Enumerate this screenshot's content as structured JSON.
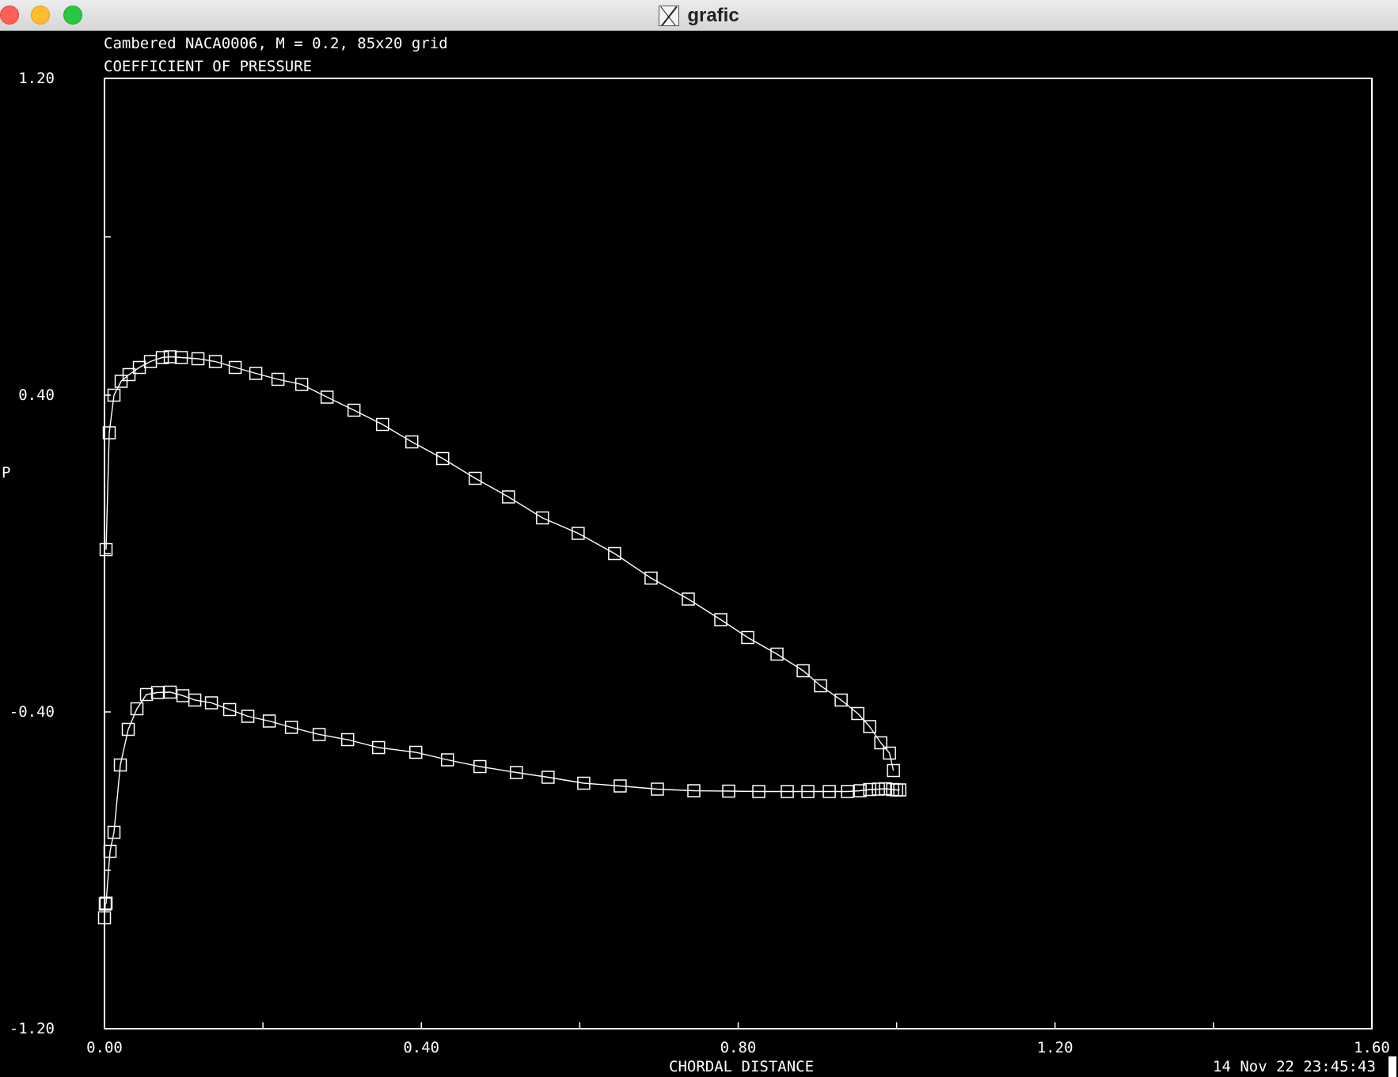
{
  "window": {
    "title": "grafic",
    "buttons": [
      "close",
      "minimize",
      "zoom"
    ],
    "app_icon": "x11-icon"
  },
  "timestamp": "14 Nov 22 23:45:43",
  "chart_data": {
    "type": "line",
    "title": "COEFFICIENT OF PRESSURE",
    "subtitle": "Cambered NACA0006, M = 0.2, 85x20 grid",
    "xlabel": "CHORDAL DISTANCE",
    "ylabel": "P",
    "xlim": [
      0,
      1.6
    ],
    "ylim": [
      -1.2,
      1.2
    ],
    "xticks": [
      0,
      0.2,
      0.4,
      0.6,
      0.8,
      1.0,
      1.2,
      1.4,
      1.6
    ],
    "xtick_labels": [
      {
        "value": 0,
        "label": "0.00"
      },
      {
        "value": 0.4,
        "label": "0.40"
      },
      {
        "value": 0.8,
        "label": "0.80"
      },
      {
        "value": 1.2,
        "label": "1.20"
      },
      {
        "value": 1.6,
        "label": "1.60"
      }
    ],
    "yticks": [
      -1.2,
      -0.8,
      -0.4,
      0,
      0.4,
      0.8,
      1.2
    ],
    "ytick_labels": [
      {
        "value": 1.2,
        "label": "1.20"
      },
      {
        "value": 0.4,
        "label": "0.40"
      },
      {
        "value": -0.4,
        "label": "-0.40"
      },
      {
        "value": -1.2,
        "label": "-1.20"
      }
    ],
    "grid": false,
    "marker": "square",
    "colors": {
      "background": "#000000",
      "foreground": "#ffffff"
    },
    "series": [
      {
        "x": [
          0.002,
          0.006,
          0.012,
          0.021,
          0.031,
          0.044,
          0.058,
          0.073,
          0.083,
          0.097,
          0.118,
          0.14,
          0.165,
          0.191,
          0.219,
          0.249,
          0.281,
          0.315,
          0.351,
          0.388,
          0.427,
          0.468,
          0.51,
          0.553,
          0.598,
          0.644,
          0.69,
          0.737,
          0.778,
          0.812,
          0.849,
          0.882,
          0.904,
          0.93,
          0.951,
          0.966,
          0.98,
          0.991,
          0.996
        ],
        "y": [
          0.01,
          0.305,
          0.4,
          0.435,
          0.452,
          0.47,
          0.485,
          0.495,
          0.497,
          0.495,
          0.492,
          0.485,
          0.47,
          0.455,
          0.44,
          0.427,
          0.395,
          0.362,
          0.326,
          0.282,
          0.24,
          0.19,
          0.143,
          0.09,
          0.051,
          0.0,
          -0.062,
          -0.115,
          -0.167,
          -0.212,
          -0.254,
          -0.296,
          -0.334,
          -0.37,
          -0.404,
          -0.437,
          -0.478,
          -0.504,
          -0.548
        ]
      },
      {
        "x": [
          0.0,
          0.001,
          0.002,
          0.007,
          0.012,
          0.02,
          0.03,
          0.041,
          0.053,
          0.067,
          0.083,
          0.099,
          0.114,
          0.135,
          0.158,
          0.181,
          0.208,
          0.236,
          0.271,
          0.307,
          0.346,
          0.393,
          0.433,
          0.474,
          0.52,
          0.56,
          0.605,
          0.651,
          0.698,
          0.744,
          0.788,
          0.826,
          0.862,
          0.888,
          0.915,
          0.938,
          0.954,
          0.966,
          0.977,
          0.986,
          0.995,
          1.0,
          1.004
        ],
        "y": [
          -0.92,
          -0.885,
          -0.883,
          -0.752,
          -0.704,
          -0.534,
          -0.444,
          -0.392,
          -0.356,
          -0.351,
          -0.35,
          -0.359,
          -0.37,
          -0.377,
          -0.394,
          -0.411,
          -0.423,
          -0.439,
          -0.457,
          -0.47,
          -0.49,
          -0.502,
          -0.521,
          -0.538,
          -0.553,
          -0.565,
          -0.58,
          -0.587,
          -0.595,
          -0.599,
          -0.6,
          -0.601,
          -0.601,
          -0.601,
          -0.601,
          -0.601,
          -0.599,
          -0.596,
          -0.595,
          -0.594,
          -0.596,
          -0.597,
          -0.597
        ]
      }
    ]
  }
}
